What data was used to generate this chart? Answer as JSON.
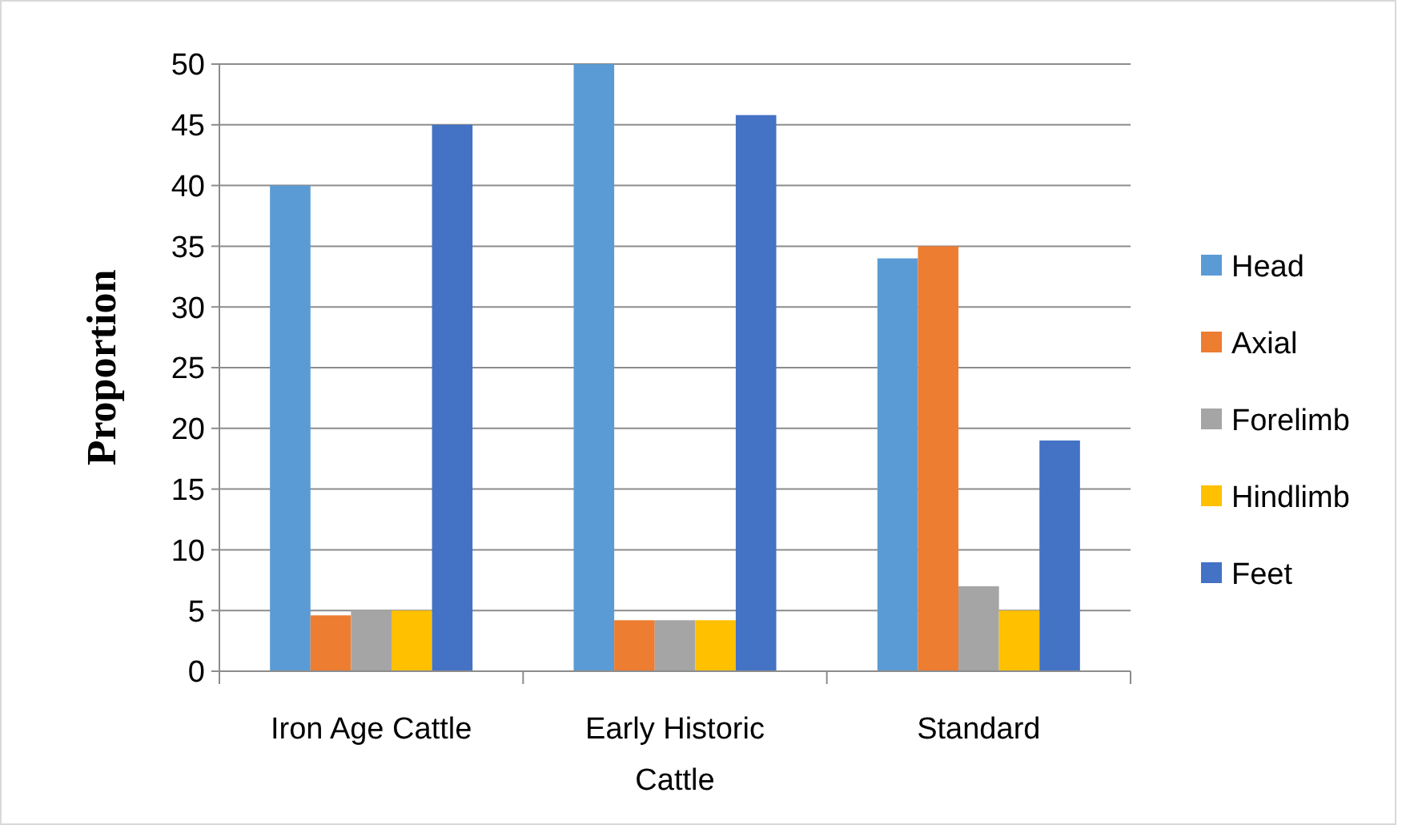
{
  "chart_data": {
    "type": "bar",
    "ylabel": "Proportion",
    "categories": [
      "Iron Age Cattle",
      "Early Historic Cattle",
      "Standard"
    ],
    "series": [
      {
        "name": "Head",
        "color": "#5b9bd5",
        "values": [
          40,
          50,
          34
        ]
      },
      {
        "name": "Axial",
        "color": "#ed7d31",
        "values": [
          4.6,
          4.2,
          35
        ]
      },
      {
        "name": "Forelimb",
        "color": "#a5a5a5",
        "values": [
          5,
          4.2,
          7
        ]
      },
      {
        "name": "Hindlimb",
        "color": "#ffc000",
        "values": [
          5,
          4.2,
          5
        ]
      },
      {
        "name": "Feet",
        "color": "#4472c4",
        "values": [
          45,
          45.8,
          19
        ]
      }
    ],
    "ylim": [
      0,
      50
    ],
    "yticks": [
      0,
      5,
      10,
      15,
      20,
      25,
      30,
      35,
      40,
      45,
      50
    ],
    "grid": "y",
    "legend": "right"
  }
}
